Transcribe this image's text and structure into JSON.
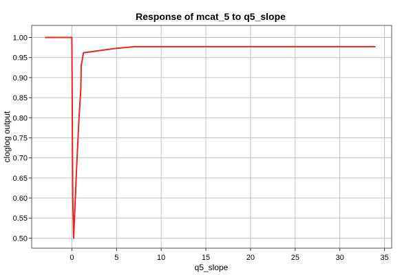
{
  "chart_data": {
    "type": "line",
    "title": "Response of mcat_5 to q5_slope",
    "xlabel": "q5_slope",
    "ylabel": "cloglog output",
    "xlim": [
      -4.5,
      35.8
    ],
    "ylim": [
      0.475,
      1.03
    ],
    "xticks": [
      0,
      5,
      10,
      15,
      20,
      25,
      30,
      35
    ],
    "yticks": [
      0.5,
      0.55,
      0.6,
      0.65,
      0.7,
      0.75,
      0.8,
      0.85,
      0.9,
      0.95,
      1.0
    ],
    "ytick_labels": [
      "0.50",
      "0.55",
      "0.60",
      "0.65",
      "0.70",
      "0.75",
      "0.80",
      "0.85",
      "0.90",
      "0.95",
      "1.00"
    ],
    "grid": true,
    "line_color": "#ee2222",
    "series": [
      {
        "points": [
          [
            -3.0,
            1.0
          ],
          [
            0.0,
            1.0
          ],
          [
            0.1,
            0.6
          ],
          [
            0.2,
            0.5
          ],
          [
            0.5,
            0.66
          ],
          [
            0.8,
            0.8
          ],
          [
            1.0,
            0.87
          ],
          [
            1.05,
            0.93
          ],
          [
            1.3,
            0.962
          ],
          [
            2.0,
            0.964
          ],
          [
            3.0,
            0.967
          ],
          [
            4.0,
            0.97
          ],
          [
            5.0,
            0.973
          ],
          [
            6.0,
            0.975
          ],
          [
            7.0,
            0.977
          ],
          [
            34.0,
            0.977
          ]
        ]
      }
    ]
  }
}
